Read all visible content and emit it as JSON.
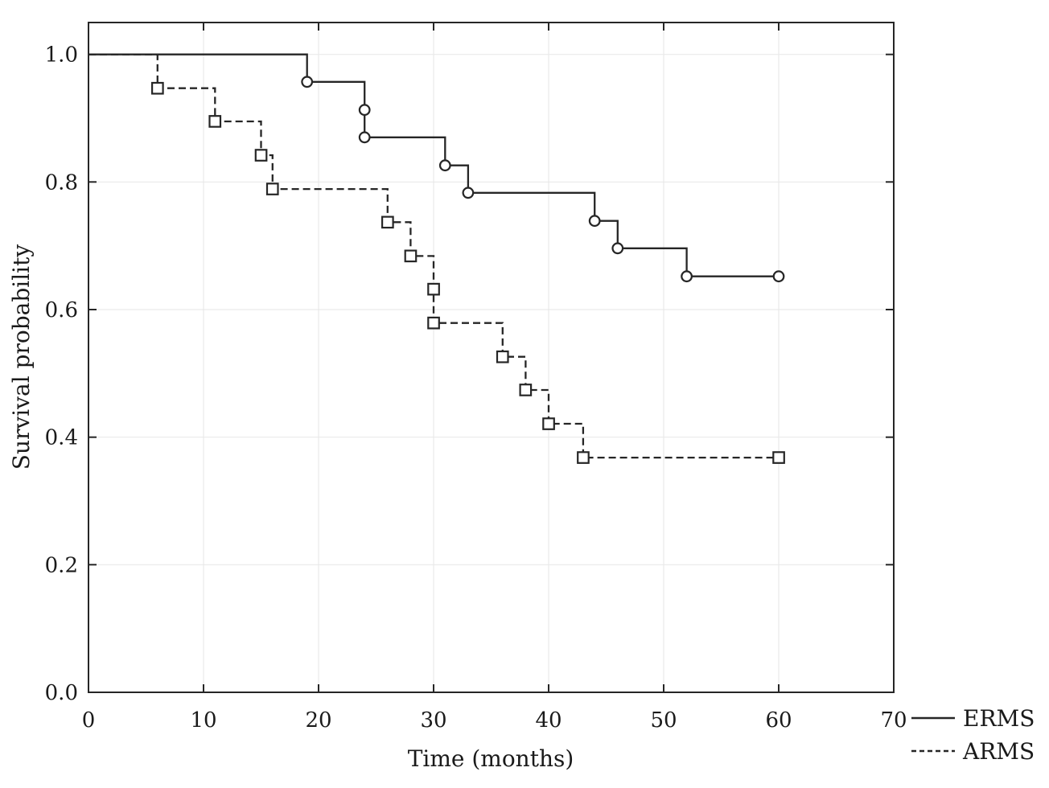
{
  "figure": {
    "background": "#ffffff"
  },
  "chart_data": {
    "type": "line",
    "subtype": "kaplan-meier-step",
    "title": "",
    "xlabel": "Time (months)",
    "ylabel": "Survival probability",
    "xlim": [
      0,
      70
    ],
    "ylim": [
      0,
      1.05
    ],
    "x_ticks": [
      0,
      10,
      20,
      30,
      40,
      50,
      60,
      70
    ],
    "x_tick_labels": [
      "0",
      "10",
      "20",
      "30",
      "40",
      "50",
      "60",
      "70"
    ],
    "y_ticks": [
      0.0,
      0.2,
      0.4,
      0.6,
      0.8,
      1.0
    ],
    "y_tick_labels": [
      "0.0",
      "0.2",
      "0.4",
      "0.6",
      "0.8",
      "1.0"
    ],
    "grid": true,
    "legend_position": "bottom-right-outside",
    "colors": {
      "line": "#262626",
      "grid": "#e9e9e9",
      "text": "#1a1a1a",
      "marker_fill": "#ffffff"
    },
    "series": [
      {
        "name": "ERMS",
        "line_style": "solid",
        "marker": "circle",
        "points": [
          [
            0,
            1.0
          ],
          [
            19,
            0.957
          ],
          [
            24,
            0.913
          ],
          [
            24,
            0.87
          ],
          [
            31,
            0.826
          ],
          [
            33,
            0.783
          ],
          [
            44,
            0.739
          ],
          [
            46,
            0.696
          ],
          [
            52,
            0.652
          ],
          [
            60,
            0.652
          ]
        ],
        "marker_points": [
          [
            19,
            0.957
          ],
          [
            24,
            0.913
          ],
          [
            24,
            0.87
          ],
          [
            31,
            0.826
          ],
          [
            33,
            0.783
          ],
          [
            44,
            0.739
          ],
          [
            46,
            0.696
          ],
          [
            52,
            0.652
          ],
          [
            60,
            0.652
          ]
        ]
      },
      {
        "name": "ARMS",
        "line_style": "dashed",
        "marker": "square",
        "points": [
          [
            0,
            1.0
          ],
          [
            6,
            0.947
          ],
          [
            11,
            0.895
          ],
          [
            15,
            0.842
          ],
          [
            16,
            0.789
          ],
          [
            26,
            0.737
          ],
          [
            28,
            0.684
          ],
          [
            30,
            0.632
          ],
          [
            30,
            0.579
          ],
          [
            36,
            0.526
          ],
          [
            38,
            0.474
          ],
          [
            40,
            0.421
          ],
          [
            43,
            0.368
          ],
          [
            60,
            0.368
          ]
        ],
        "marker_points": [
          [
            6,
            0.947
          ],
          [
            11,
            0.895
          ],
          [
            15,
            0.842
          ],
          [
            16,
            0.789
          ],
          [
            26,
            0.737
          ],
          [
            28,
            0.684
          ],
          [
            30,
            0.632
          ],
          [
            30,
            0.579
          ],
          [
            36,
            0.526
          ],
          [
            38,
            0.474
          ],
          [
            40,
            0.421
          ],
          [
            43,
            0.368
          ],
          [
            60,
            0.368
          ]
        ]
      }
    ]
  }
}
